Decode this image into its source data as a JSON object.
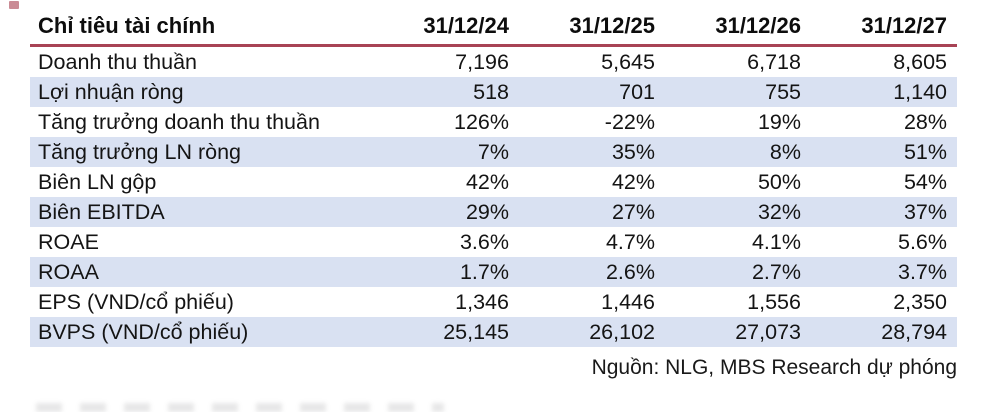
{
  "table": {
    "header": {
      "label": "Chỉ tiêu tài chính",
      "columns": [
        "31/12/24",
        "31/12/25",
        "31/12/26",
        "31/12/27"
      ]
    },
    "rows": [
      {
        "label": "Doanh thu thuần",
        "values": [
          "7,196",
          "5,645",
          "6,718",
          "8,605"
        ]
      },
      {
        "label": "Lợi nhuận ròng",
        "values": [
          "518",
          "701",
          "755",
          "1,140"
        ]
      },
      {
        "label": "Tăng trưởng doanh thu thuần",
        "values": [
          "126%",
          "-22%",
          "19%",
          "28%"
        ]
      },
      {
        "label": "Tăng trưởng LN ròng",
        "values": [
          "7%",
          "35%",
          "8%",
          "51%"
        ]
      },
      {
        "label": "Biên LN gộp",
        "values": [
          "42%",
          "42%",
          "50%",
          "54%"
        ]
      },
      {
        "label": "Biên EBITDA",
        "values": [
          "29%",
          "27%",
          "32%",
          "37%"
        ]
      },
      {
        "label": "ROAE",
        "values": [
          "3.6%",
          "4.7%",
          "4.1%",
          "5.6%"
        ]
      },
      {
        "label": "ROAA",
        "values": [
          "1.7%",
          "2.6%",
          "2.7%",
          "3.7%"
        ]
      },
      {
        "label": "EPS (VND/cổ phiếu)",
        "values": [
          "1,346",
          "1,446",
          "1,556",
          "2,350"
        ]
      },
      {
        "label": "BVPS (VND/cổ phiếu)",
        "values": [
          "25,145",
          "26,102",
          "27,073",
          "28,794"
        ]
      }
    ]
  },
  "footer": {
    "source": "Nguồn: NLG, MBS Research dự phóng"
  },
  "colors": {
    "header_rule": "#a84355",
    "row_alternate": "#d9e1f2",
    "text": "#141414"
  }
}
